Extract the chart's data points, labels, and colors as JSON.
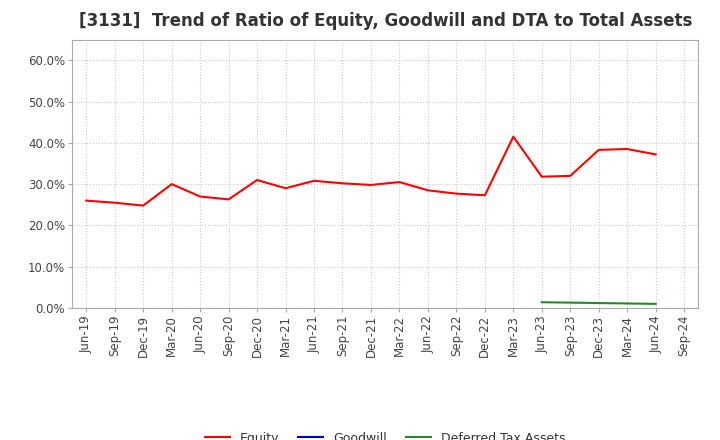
{
  "title": "[3131]  Trend of Ratio of Equity, Goodwill and DTA to Total Assets",
  "x_labels": [
    "Jun-19",
    "Sep-19",
    "Dec-19",
    "Mar-20",
    "Jun-20",
    "Sep-20",
    "Dec-20",
    "Mar-21",
    "Jun-21",
    "Sep-21",
    "Dec-21",
    "Mar-22",
    "Jun-22",
    "Sep-22",
    "Dec-22",
    "Mar-23",
    "Jun-23",
    "Sep-23",
    "Dec-23",
    "Mar-24",
    "Jun-24",
    "Sep-24"
  ],
  "equity": [
    0.26,
    0.255,
    0.248,
    0.3,
    0.27,
    0.263,
    0.31,
    0.29,
    0.308,
    0.302,
    0.298,
    0.305,
    0.285,
    0.277,
    0.273,
    0.415,
    0.318,
    0.32,
    0.383,
    0.385,
    0.372,
    null
  ],
  "goodwill": [
    null,
    null,
    null,
    null,
    null,
    null,
    null,
    null,
    null,
    null,
    null,
    null,
    null,
    null,
    null,
    null,
    null,
    null,
    null,
    null,
    null,
    null
  ],
  "dta": [
    null,
    null,
    null,
    null,
    null,
    null,
    null,
    null,
    null,
    null,
    null,
    null,
    null,
    null,
    null,
    null,
    0.014,
    0.013,
    0.012,
    0.011,
    0.01,
    null
  ],
  "equity_color": "#ff0000",
  "goodwill_color": "#0000cd",
  "dta_color": "#228b22",
  "ylim": [
    0.0,
    0.65
  ],
  "yticks": [
    0.0,
    0.1,
    0.2,
    0.3,
    0.4,
    0.5,
    0.6
  ],
  "background_color": "#ffffff",
  "grid_color": "#c8c8c8",
  "legend_labels": [
    "Equity",
    "Goodwill",
    "Deferred Tax Assets"
  ],
  "title_fontsize": 12,
  "tick_fontsize": 8.5
}
